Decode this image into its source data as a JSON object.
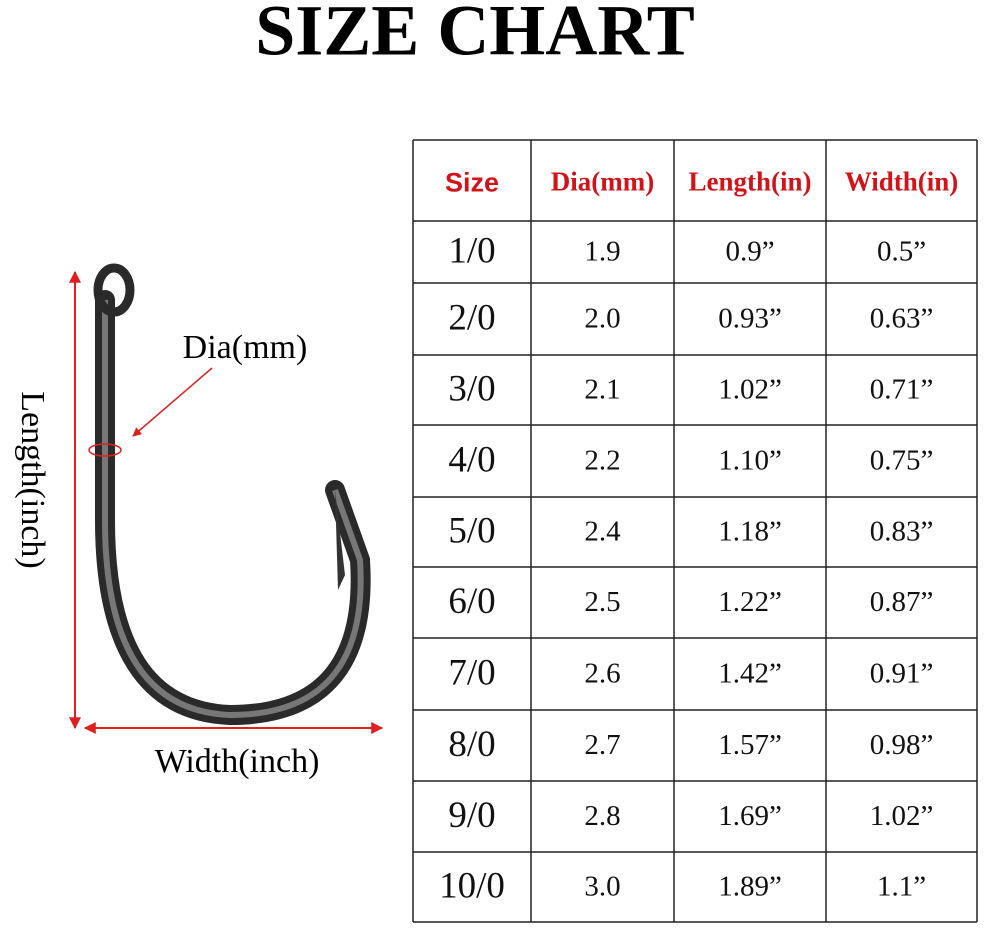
{
  "header": {
    "title": "SIZE CHART"
  },
  "diagram": {
    "dia_label": "Dia(mm)",
    "length_label": "Length(inch)",
    "width_label": "Width(inch)"
  },
  "table": {
    "columns": [
      "Size",
      "Dia(mm)",
      "Length(in)",
      "Width(in)"
    ],
    "rows": [
      [
        "1/0",
        "1.9",
        "0.9”",
        "0.5”"
      ],
      [
        "2/0",
        "2.0",
        "0.93”",
        "0.63”"
      ],
      [
        "3/0",
        "2.1",
        "1.02”",
        "0.71”"
      ],
      [
        "4/0",
        "2.2",
        "1.10”",
        "0.75”"
      ],
      [
        "5/0",
        "2.4",
        "1.18”",
        "0.83”"
      ],
      [
        "6/0",
        "2.5",
        "1.22”",
        "0.87”"
      ],
      [
        "7/0",
        "2.6",
        "1.42”",
        "0.91”"
      ],
      [
        "8/0",
        "2.7",
        "1.57”",
        "0.98”"
      ],
      [
        "9/0",
        "2.8",
        "1.69”",
        "1.02”"
      ],
      [
        "10/0",
        "3.0",
        "1.89”",
        "1.1”"
      ]
    ]
  }
}
